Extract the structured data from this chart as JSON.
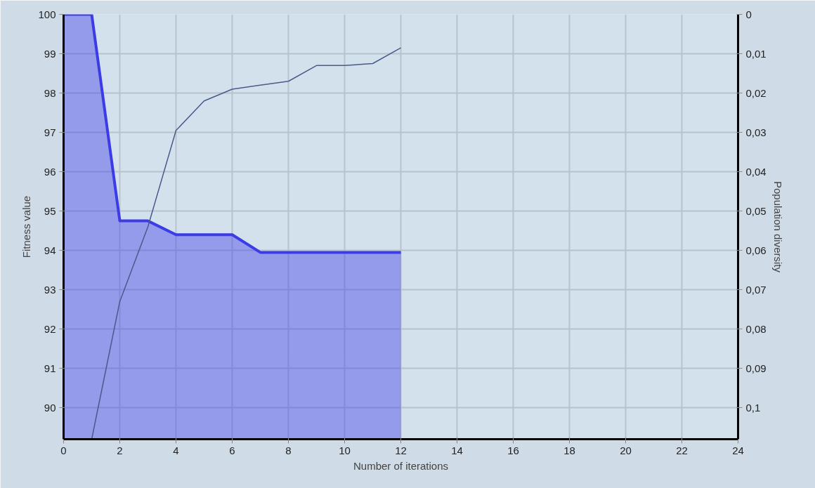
{
  "chart_data": {
    "type": "area",
    "xlabel": "Number of iterations",
    "ylabel": "Fitness value",
    "y2label": "Population diversity",
    "xlim": [
      0,
      24
    ],
    "xticks": [
      0,
      2,
      4,
      6,
      8,
      10,
      12,
      14,
      16,
      18,
      20,
      22,
      24
    ],
    "ylim": [
      89.2,
      100
    ],
    "yticks": [
      90,
      91,
      92,
      93,
      94,
      95,
      96,
      97,
      98,
      99,
      100
    ],
    "y2lim": [
      0.108,
      0
    ],
    "y2ticks": [
      {
        "value": 0,
        "label": "0"
      },
      {
        "value": 0.01,
        "label": "0,01"
      },
      {
        "value": 0.02,
        "label": "0,02"
      },
      {
        "value": 0.03,
        "label": "0,03"
      },
      {
        "value": 0.04,
        "label": "0,04"
      },
      {
        "value": 0.05,
        "label": "0,05"
      },
      {
        "value": 0.06,
        "label": "0,06"
      },
      {
        "value": 0.07,
        "label": "0,07"
      },
      {
        "value": 0.08,
        "label": "0,08"
      },
      {
        "value": 0.09,
        "label": "0,09"
      },
      {
        "value": 0.1,
        "label": "0,1"
      }
    ],
    "grid": true,
    "series": [
      {
        "color": "#3c3ce6",
        "x": [
          0,
          1,
          2,
          3,
          4,
          5,
          6,
          7,
          8,
          9,
          10,
          11,
          12
        ],
        "values": [
          100,
          100,
          94.75,
          94.75,
          94.4,
          94.4,
          94.4,
          93.95,
          93.95,
          93.95,
          93.95,
          93.95,
          93.95
        ]
      },
      {
        "type": "line",
        "axis": "y2",
        "color": "#4a5a8a",
        "x": [
          1,
          2,
          3,
          4,
          5,
          6,
          7,
          8,
          9,
          10,
          11,
          12
        ],
        "values": [
          0.108,
          0.073,
          0.054,
          0.0295,
          0.022,
          0.019,
          0.018,
          0.017,
          0.013,
          0.013,
          0.0125,
          0.0085
        ]
      }
    ]
  }
}
